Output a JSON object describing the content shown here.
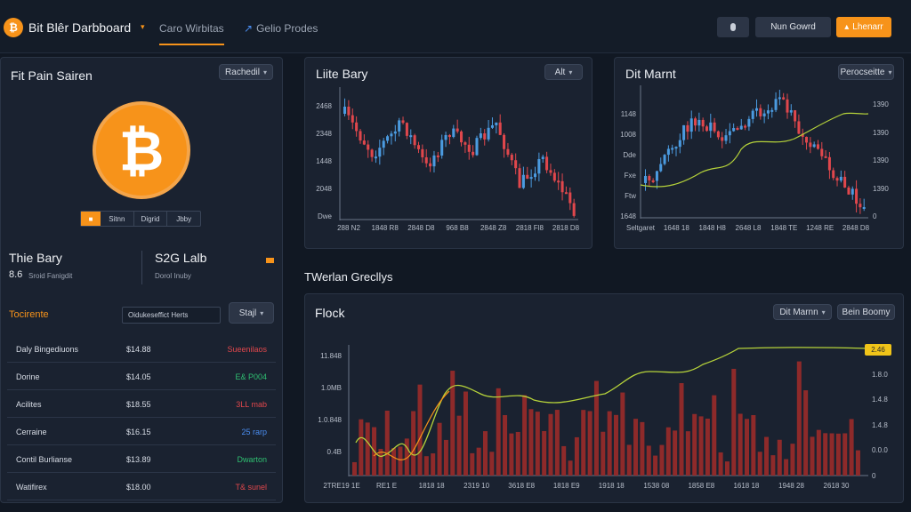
{
  "header": {
    "app_title": "Bit Blêr Darbboard",
    "tabs": [
      "Caro Wirbitas",
      "Gelio Prodes"
    ],
    "buttons": {
      "account": "Nun Gowrd",
      "action": "Lhenarr"
    }
  },
  "left": {
    "title": "Fit Pain Sairen",
    "dropdown": "Rachedil",
    "coin_tabs": [
      "Sitnn",
      "Digrid",
      "Jbby"
    ],
    "stat1_title": "Thie Bary",
    "stat1_value": "8.6",
    "stat1_sub": "Sroid Fanigdit",
    "stat2_title": "S2G Lalb",
    "stat2_sub": "Dorol Inuby",
    "section_title": "Tocirente",
    "search_value": "Oidukeseffict Herts",
    "filter_button": "Stajl",
    "rows": [
      {
        "name": "Daly Bingediuons",
        "price": "$14.88",
        "change": "Sueenilaos",
        "color": "#e0474c"
      },
      {
        "name": "Dorine",
        "price": "$14.05",
        "change": "E& P004",
        "color": "#2fbf71"
      },
      {
        "name": "Acilites",
        "price": "$18.55",
        "change": "3LL mab",
        "color": "#e0474c"
      },
      {
        "name": "Cerraine",
        "price": "$16.15",
        "change": "25 rarp",
        "color": "#4a8df0"
      },
      {
        "name": "Contil Burlianse",
        "price": "$13.89",
        "change": "Dwarton",
        "color": "#2fbf71"
      },
      {
        "name": "Watifirex",
        "price": "$18.00",
        "change": "T& sunel",
        "color": "#e0474c"
      }
    ]
  },
  "chart1": {
    "title": "Liite Bary",
    "dropdown": "Alt",
    "y_ticks": [
      "2468",
      "2348",
      "1448",
      "2048",
      "Dwe"
    ],
    "x_ticks": [
      "288 N2",
      "1848 R8",
      "2848 D8",
      "968 B8",
      "2848 Z8",
      "2818 Fl8",
      "2818 D8"
    ]
  },
  "chart2": {
    "title": "Dit Marnt",
    "dropdown": "Perocseitte",
    "y_ticks_left": [
      "1148",
      "1008",
      "Dde",
      "Fxe",
      "Ftw",
      "1648"
    ],
    "y_ticks_right": [
      "1390",
      "1390",
      "1390",
      "1390",
      "0"
    ],
    "x_ticks": [
      "Seltgaret",
      "1648 18",
      "1848 H8",
      "2648 L8",
      "1848 TE",
      "1248 RE",
      "2848 D8"
    ]
  },
  "section_heading": "TWerlan Grecllys",
  "chart3": {
    "title": "Flock",
    "dropdown": "Dit Marnn",
    "button": "Bein Boomy",
    "y_ticks_left": [
      "11.848",
      "1.0MB",
      "1.0.848",
      "0.4B"
    ],
    "y_ticks_right": [
      "1.60",
      "1.8.0",
      "1.4.8",
      "1.4.8",
      "0.0.0",
      "0"
    ],
    "x_ticks": [
      "2TRE19 1E",
      "RE1 E",
      "1818 18",
      "2319 10",
      "3618 E8",
      "1818 E9",
      "1918 18",
      "1538 08",
      "1858 E8",
      "1618 18",
      "1948 28",
      "2618 30"
    ],
    "badge": "2.46"
  },
  "colors": {
    "accent": "#f7931a",
    "up": "#4b9be0",
    "down": "#e0474c",
    "line": "#b6d33a",
    "bar": "#8e2a2a"
  }
}
